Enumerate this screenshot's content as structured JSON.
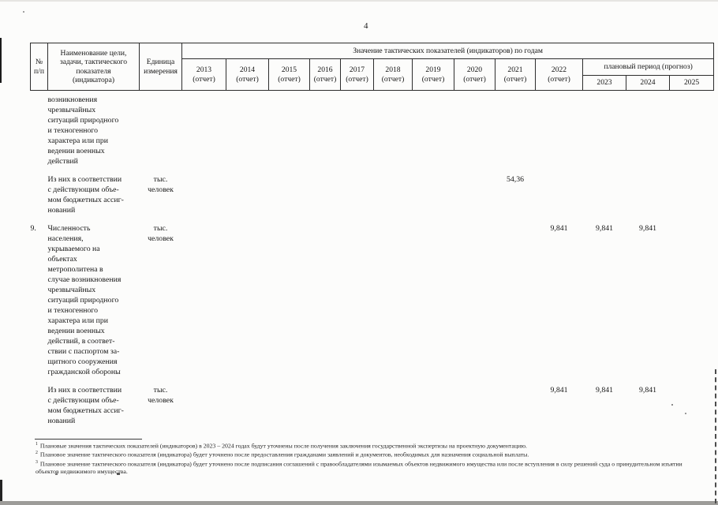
{
  "page": {
    "number": "4"
  },
  "table": {
    "header": {
      "col_num": "№\nп/п",
      "col_name": "Наименование цели,\nзадачи, тактического\nпоказателя\n(индикатора)",
      "col_unit": "Единица\nизмерения",
      "values_title": "Значение тактических показателей (индикаторов) по годам",
      "report_suffix": "(отчет)",
      "report_years": [
        "2013",
        "2014",
        "2015",
        "2016",
        "2017",
        "2018",
        "2019",
        "2020",
        "2021",
        "2022"
      ],
      "plan_title": "плановый период (прогноз)",
      "plan_years": [
        "2023",
        "2024",
        "2025"
      ]
    },
    "year_order": [
      "2013",
      "2014",
      "2015",
      "2016",
      "2017",
      "2018",
      "2019",
      "2020",
      "2021",
      "2022",
      "2023",
      "2024",
      "2025"
    ],
    "rows": [
      {
        "num": "",
        "name": "возникновения\nчрезвычайных\nситуаций природного\nи техногенного\nхарактера или при\nведении военных\nдействий",
        "unit": "",
        "values": {}
      },
      {
        "num": "",
        "name": "Из них в соответствии\nс действующим объе-\nмом бюджетных ассиг-\nнований",
        "unit": "тыс.\nчеловек",
        "values": {
          "2021": "54,36"
        }
      },
      {
        "num": "9.",
        "name": "Численность\nнаселения,\nукрываемого на\nобъектах\nметрополитена в\nслучае возникновения\nчрезвычайных\nситуаций природного\nи техногенного\nхарактера или при\nведении военных\nдействий, в соответ-\nствии с паспортом за-\nщитного сооружения\nгражданской обороны",
        "unit": "тыс.\nчеловек",
        "values": {
          "2022": "9,841",
          "2023": "9,841",
          "2024": "9,841"
        }
      },
      {
        "num": "",
        "name": "Из них в соответствии\nс действующим объе-\nмом бюджетных ассиг-\nнований",
        "unit": "тыс.\nчеловек",
        "values": {
          "2022": "9,841",
          "2023": "9,841",
          "2024": "9,841"
        }
      }
    ]
  },
  "footnotes": [
    {
      "marker": "1",
      "text": "Плановые значения тактических показателей (индикаторов) в 2023 – 2024 годах будут уточнены после получения заключения государственной экспертизы на проектную документацию."
    },
    {
      "marker": "2",
      "text": "Плановое значение тактического показателя (индикатора) будет уточнено после предоставления гражданами заявлений и документов, необходимых для назначения социальной выплаты."
    },
    {
      "marker": "3",
      "text": "Плановое значение тактического показателя (индикатора) будет уточнено после подписания соглашений с правообладателями изымаемых объектов недвижимого имущества или после вступления в силу решений суда о принудительном изъятии объектов недвижимого имущества."
    }
  ]
}
